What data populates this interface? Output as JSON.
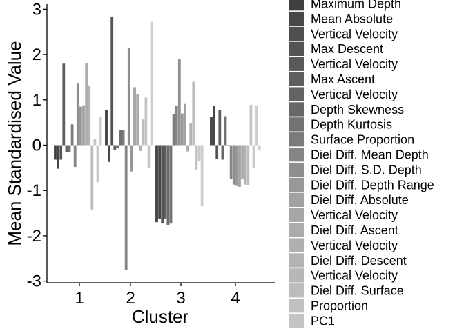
{
  "chart_data": {
    "type": "bar",
    "xlabel": "Cluster",
    "ylabel": "Mean Standardised Value",
    "ylim": [
      -3,
      3
    ],
    "yticks": [
      "-3",
      "-2",
      "-1",
      "0",
      "1",
      "2",
      "3"
    ],
    "categories": [
      "1",
      "2",
      "3",
      "4"
    ],
    "legend_position": "right",
    "series": [
      {
        "name": "Maximum Depth",
        "color": "#3f3f3f",
        "values": [
          -0.32,
          0.77,
          -1.7,
          0.63
        ]
      },
      {
        "name": "Mean Absolute Vertical Velocity",
        "color": "#474747",
        "values": [
          -0.52,
          -0.37,
          -1.62,
          0.87
        ]
      },
      {
        "name": "Max Descent Vertical Velocity",
        "color": "#545454",
        "values": [
          -0.32,
          2.84,
          -1.73,
          -0.3
        ]
      },
      {
        "name": "Max Ascent Vertical Velocity",
        "color": "#5e5e5e",
        "values": [
          1.8,
          -0.1,
          -1.62,
          0.77
        ]
      },
      {
        "name": "Depth Skewness",
        "color": "#686868",
        "values": [
          -0.15,
          -0.07,
          -1.77,
          -0.32
        ]
      },
      {
        "name": "Depth Kurtosis",
        "color": "#727272",
        "values": [
          -0.15,
          0.33,
          -1.73,
          0.64
        ]
      },
      {
        "name": "Surface Proportion",
        "color": "#7b7b7b",
        "values": [
          0.46,
          0.33,
          0.68,
          -0.02
        ]
      },
      {
        "name": "Diel Diff. Mean Depth",
        "color": "#858585",
        "values": [
          -0.48,
          -2.75,
          0.87,
          -0.75
        ]
      },
      {
        "name": "Diel Diff. S.D. Depth",
        "color": "#8e8e8e",
        "values": [
          1.36,
          2.15,
          1.9,
          -0.87
        ]
      },
      {
        "name": "Diel Diff. Depth Range",
        "color": "#989898",
        "values": [
          0.85,
          -0.58,
          0.7,
          -0.9
        ]
      },
      {
        "name": "Diel Diff. Absolute Vertical Velocity",
        "color": "#a2a2a2",
        "values": [
          0.88,
          1.28,
          0.91,
          -0.92
        ]
      },
      {
        "name": "Diel Diff. Ascent Vertical Velocity",
        "color": "#acacac",
        "values": [
          1.82,
          1.13,
          -0.14,
          -0.75
        ]
      },
      {
        "name": "Diel Diff. Descent Vertical Velocity",
        "color": "#b3b3b3",
        "values": [
          1.32,
          -0.13,
          0.48,
          -0.87
        ]
      },
      {
        "name": "Diel Diff. Surface Proportion",
        "color": "#bcbcbc",
        "values": [
          -1.42,
          0.57,
          1.4,
          -0.88
        ]
      },
      {
        "name": "PC1",
        "color": "#c4c4c4",
        "values": [
          0.14,
          1.05,
          -0.54,
          0.89
        ]
      },
      {
        "name": "",
        "color": "#c9c9c9",
        "values": [
          -0.82,
          -0.5,
          -0.35,
          -0.5
        ]
      },
      {
        "name": "",
        "color": "#cdcdcd",
        "values": [
          0.63,
          2.72,
          -1.35,
          0.86
        ]
      },
      {
        "name": "",
        "color": "#d1d1d1",
        "values": [
          0.0,
          0.0,
          0.0,
          -0.12
        ]
      }
    ],
    "legend_rows": [
      {
        "label": "Maximum Depth",
        "color": "#3f3f3f"
      },
      {
        "label": "Mean Absolute",
        "color": "#474747"
      },
      {
        "label": "Vertical Velocity",
        "color": "#4e4e4e"
      },
      {
        "label": "Max Descent",
        "color": "#545454"
      },
      {
        "label": "Vertical Velocity",
        "color": "#595959"
      },
      {
        "label": "Max Ascent",
        "color": "#5e5e5e"
      },
      {
        "label": "Vertical Velocity",
        "color": "#636363"
      },
      {
        "label": "Depth Skewness",
        "color": "#686868"
      },
      {
        "label": "Depth Kurtosis",
        "color": "#727272"
      },
      {
        "label": "Surface Proportion",
        "color": "#7b7b7b"
      },
      {
        "label": "Diel Diff. Mean Depth",
        "color": "#858585"
      },
      {
        "label": "Diel Diff. S.D. Depth",
        "color": "#8e8e8e"
      },
      {
        "label": "Diel Diff. Depth Range",
        "color": "#989898"
      },
      {
        "label": "Diel Diff. Absolute",
        "color": "#a2a2a2"
      },
      {
        "label": "Vertical Velocity",
        "color": "#a7a7a7"
      },
      {
        "label": "Diel Diff. Ascent",
        "color": "#acacac"
      },
      {
        "label": "Vertical Velocity",
        "color": "#b0b0b0"
      },
      {
        "label": "Diel Diff. Descent",
        "color": "#b3b3b3"
      },
      {
        "label": "Vertical Velocity",
        "color": "#b7b7b7"
      },
      {
        "label": "Diel Diff. Surface",
        "color": "#bcbcbc"
      },
      {
        "label": "Proportion",
        "color": "#c0c0c0"
      },
      {
        "label": "PC1",
        "color": "#c4c4c4"
      }
    ]
  }
}
